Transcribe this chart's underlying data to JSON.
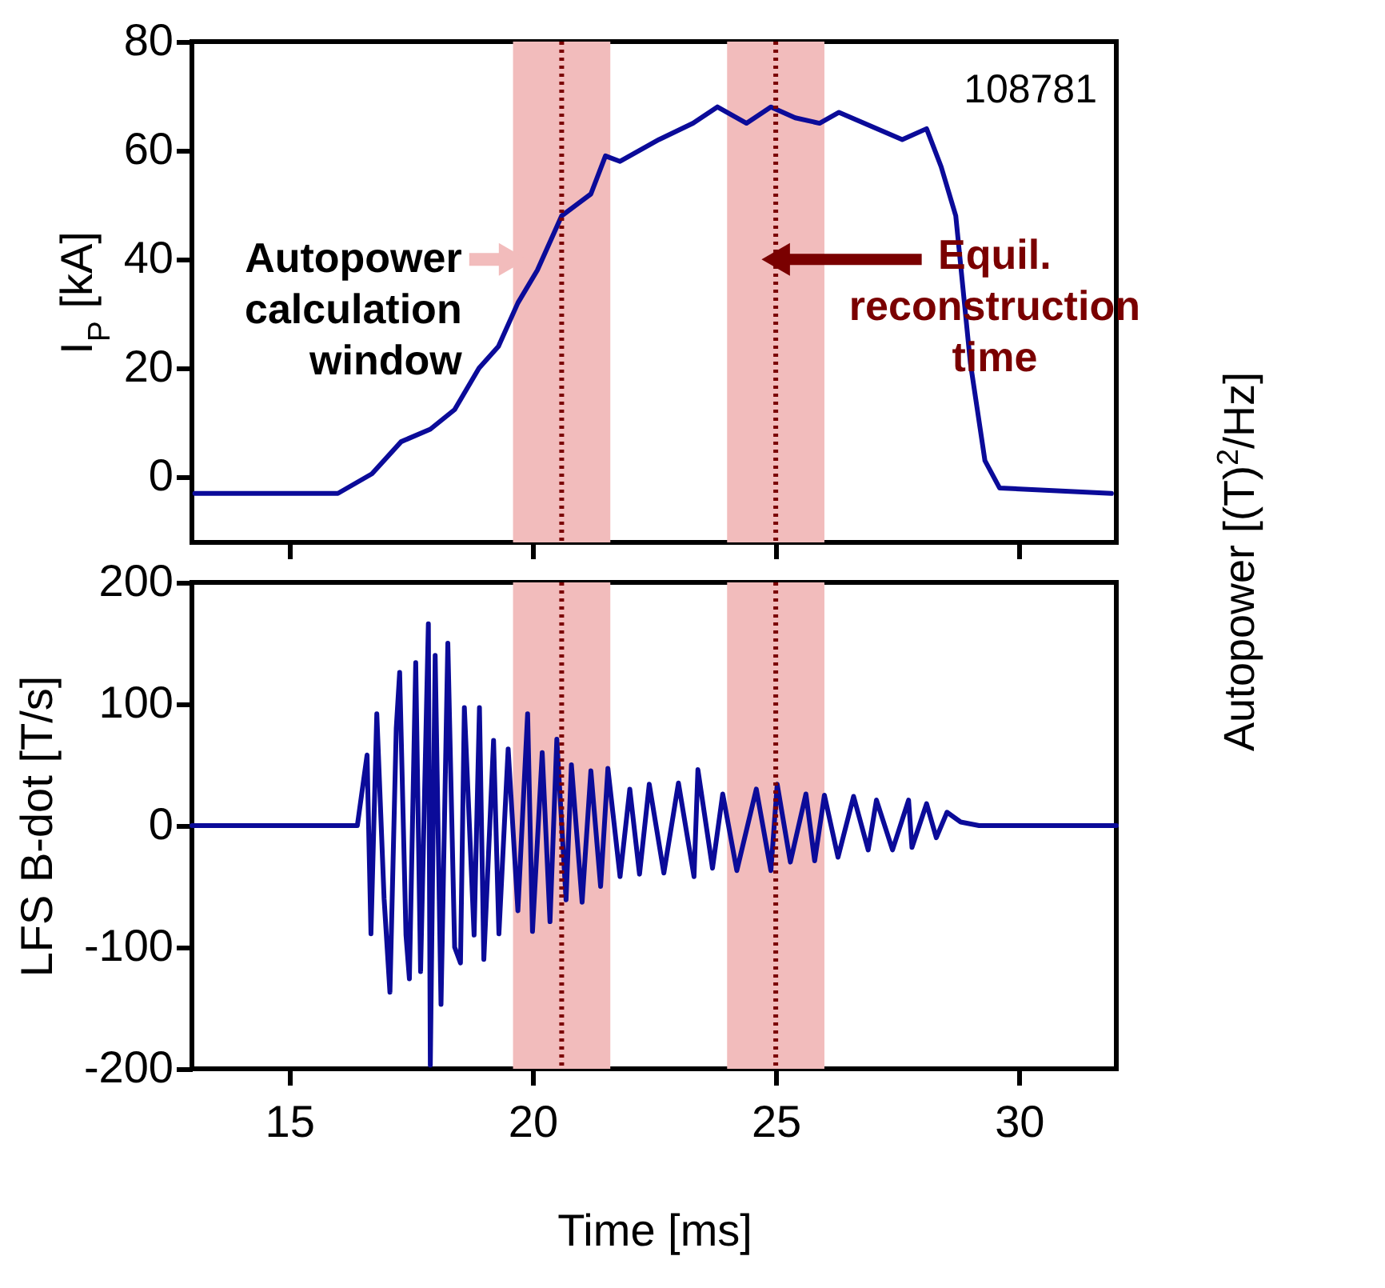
{
  "chart_data": [
    {
      "type": "line",
      "ylabel": "I$_{P}$ [kA]",
      "y2label": "Autopower [(T)$^{2}$/Hz]",
      "x": [
        13.06,
        16.0,
        16.7,
        17.3,
        17.9,
        18.4,
        18.9,
        19.3,
        19.7,
        20.1,
        20.6,
        21.2,
        21.5,
        21.8,
        22.6,
        23.3,
        23.8,
        24.4,
        24.9,
        25.4,
        25.9,
        26.3,
        27.6,
        28.1,
        28.4,
        28.7,
        29.0,
        29.3,
        29.6,
        31.9
      ],
      "series": [
        {
          "color": "#0b0b99",
          "values": [
            -3,
            -3,
            0.6,
            6.5,
            8.8,
            12.4,
            20,
            24,
            32,
            38,
            48,
            52,
            59,
            58,
            62,
            65,
            68,
            65,
            68,
            66,
            65,
            67,
            62,
            64,
            57,
            48,
            21,
            3,
            -2,
            -3
          ]
        }
      ],
      "xlim": [
        13,
        32
      ],
      "xticks": [
        15,
        20,
        25,
        30
      ],
      "ylim": [
        -12,
        80
      ],
      "yticks": [
        0,
        20,
        40,
        60,
        80
      ],
      "tick_labels": "y",
      "bands": [
        {
          "axis": "x",
          "from": 19.6,
          "to": 21.6,
          "color": "#f2bcbc"
        },
        {
          "axis": "x",
          "from": 24.0,
          "to": 26.0,
          "color": "#f2bcbc"
        }
      ],
      "ref_lines": [
        {
          "axis": "x",
          "value": 20.6,
          "color": "#7a0000",
          "line_style": "dotted"
        },
        {
          "axis": "x",
          "value": 25.0,
          "color": "#7a0000",
          "line_style": "dotted"
        }
      ],
      "annotations": [
        "108781",
        {
          "text": "Autopower calculation window",
          "x": 19.6,
          "y": 40
        },
        {
          "text": "Equil. reconstruction time",
          "x": 25.0,
          "y": 40
        }
      ]
    },
    {
      "type": "line",
      "xlabel": "Time [ms]",
      "ylabel": "LFS B-dot [T/s]",
      "x": [
        13,
        16.4,
        16.6,
        16.68,
        16.8,
        16.95,
        17.07,
        17.2,
        17.27,
        17.4,
        17.47,
        17.6,
        17.7,
        17.86,
        17.9,
        18.0,
        18.12,
        18.26,
        18.4,
        18.52,
        18.6,
        18.8,
        18.91,
        19.0,
        19.2,
        19.31,
        19.5,
        19.7,
        19.9,
        20.0,
        20.2,
        20.36,
        20.5,
        20.69,
        20.8,
        21.02,
        21.2,
        21.4,
        21.55,
        21.8,
        22.0,
        22.2,
        22.4,
        22.7,
        23.0,
        23.32,
        23.4,
        23.7,
        23.91,
        24.2,
        24.6,
        24.9,
        25.03,
        25.3,
        25.62,
        25.8,
        26.0,
        26.28,
        26.6,
        26.9,
        27.07,
        27.4,
        27.73,
        27.8,
        28.1,
        28.3,
        28.52,
        28.8,
        29.18,
        32
      ],
      "series": [
        {
          "color": "#0b0b99",
          "values": [
            0,
            0,
            58,
            -89,
            92,
            -60,
            -137,
            80,
            126,
            -90,
            -126,
            134,
            -120,
            166,
            -197,
            140,
            -147,
            150,
            -100,
            -113,
            97,
            -90,
            97,
            -110,
            70,
            -89,
            63,
            -70,
            92,
            -87,
            60,
            -79,
            71,
            -61,
            50,
            -63,
            45,
            -50,
            47,
            -42,
            30,
            -40,
            34,
            -39,
            35,
            -42,
            46,
            -35,
            26,
            -37,
            30,
            -37,
            34,
            -30,
            26,
            -29,
            25,
            -26,
            24,
            -20,
            21,
            -20,
            21,
            -18,
            18,
            -10,
            11,
            3,
            0,
            0
          ]
        }
      ],
      "xlim": [
        13,
        32
      ],
      "xticks": [
        15,
        20,
        25,
        30
      ],
      "ylim": [
        -200,
        200
      ],
      "yticks": [
        -200,
        -100,
        0,
        100,
        200
      ],
      "bands": [
        {
          "axis": "x",
          "from": 19.6,
          "to": 21.6,
          "color": "#f2bcbc"
        },
        {
          "axis": "x",
          "from": 24.0,
          "to": 26.0,
          "color": "#f2bcbc"
        }
      ],
      "ref_lines": [
        {
          "axis": "x",
          "value": 20.6,
          "color": "#7a0000",
          "line_style": "dotted"
        },
        {
          "axis": "x",
          "value": 25.0,
          "color": "#7a0000",
          "line_style": "dotted"
        }
      ]
    }
  ]
}
